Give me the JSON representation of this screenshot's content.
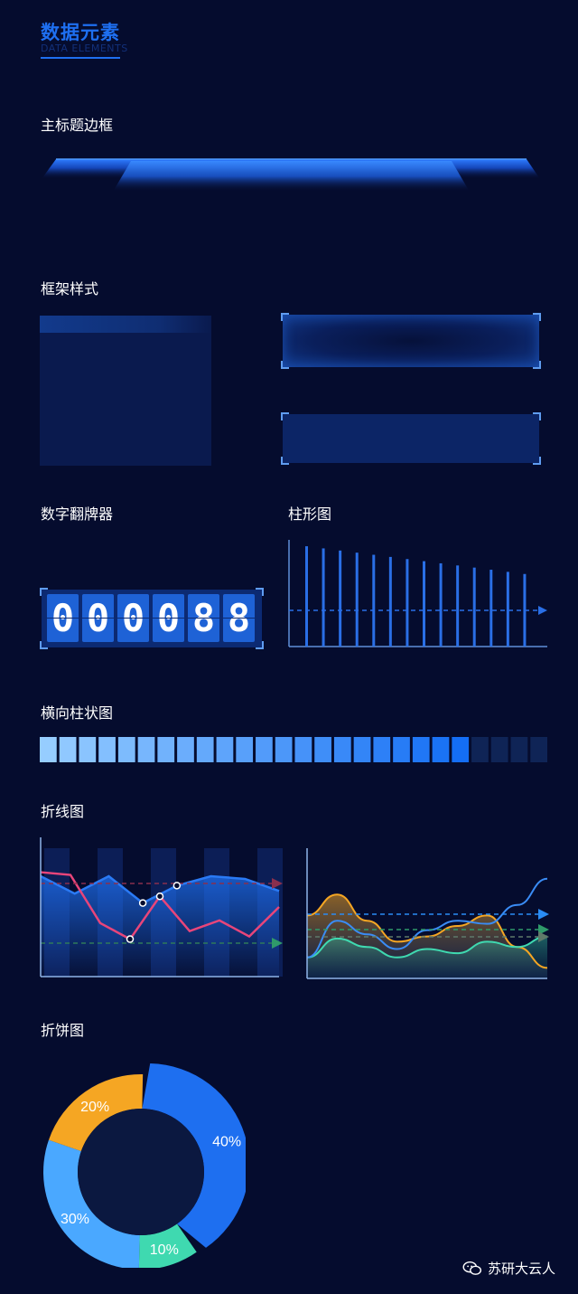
{
  "header": {
    "title": "数据元素",
    "subtitle": "DATA ELEMENTS"
  },
  "sections": {
    "main_title_border": "主标题边框",
    "frame_style": "框架样式",
    "digit_flipper": "数字翻牌器",
    "bar_chart": "柱形图",
    "horizontal_bar": "横向柱状图",
    "line_chart": "折线图",
    "pie_chart": "折饼图"
  },
  "counter": {
    "digits": [
      "0",
      "0",
      "0",
      "0",
      "8",
      "8"
    ]
  },
  "colors": {
    "background": "#050c2e",
    "accent": "#1e6ff0",
    "pink": "#e8457a",
    "orange": "#f5a623",
    "teal": "#3fd9b0",
    "light_blue": "#4aa8ff"
  },
  "chart_data": [
    {
      "type": "bar",
      "values": [
        94,
        92,
        90,
        88,
        86,
        84,
        82,
        80,
        78,
        76,
        74,
        72,
        70,
        68
      ]
    },
    {
      "type": "bar",
      "orientation": "horizontal",
      "segments_total": 26,
      "segments_filled": 22
    },
    {
      "type": "line",
      "series": [
        {
          "values": [
            78,
            76,
            40,
            28,
            60,
            34,
            42,
            30,
            52
          ]
        },
        {
          "values": [
            35,
            22,
            35,
            15,
            28,
            35,
            33,
            24
          ]
        }
      ]
    },
    {
      "type": "area",
      "series": [
        {
          "values": [
            60,
            80,
            55,
            35,
            40,
            50,
            60,
            30,
            10
          ]
        },
        {
          "values": [
            20,
            55,
            42,
            28,
            46,
            55,
            52,
            70,
            95
          ]
        },
        {
          "values": [
            20,
            38,
            30,
            20,
            28,
            24,
            35,
            30,
            40
          ]
        }
      ]
    },
    {
      "type": "pie",
      "slices": [
        {
          "label": "40%",
          "value": 40,
          "color": "#1e6ff0"
        },
        {
          "label": "10%",
          "value": 10,
          "color": "#3fd9b0"
        },
        {
          "label": "30%",
          "value": 30,
          "color": "#4aa8ff"
        },
        {
          "label": "20%",
          "value": 20,
          "color": "#f5a623"
        }
      ]
    }
  ],
  "watermark": {
    "icon": "wechat-icon",
    "text": "苏研大云人"
  }
}
